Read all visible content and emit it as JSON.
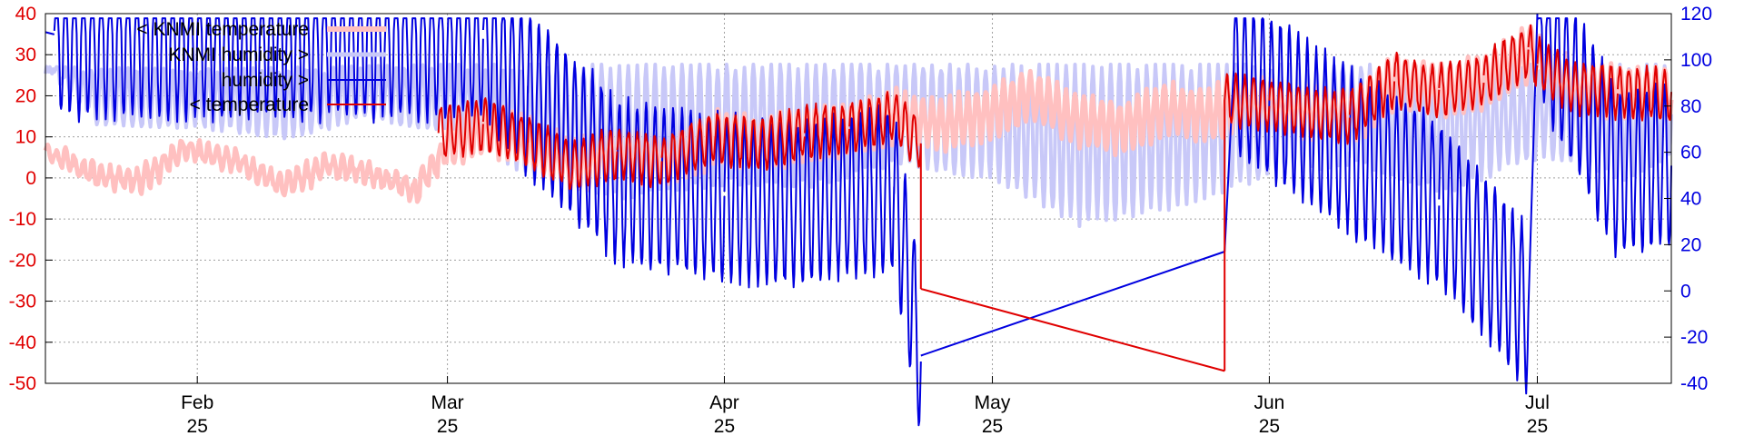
{
  "chart_data": {
    "type": "line",
    "title": "",
    "x_tick_labels": [
      {
        "date": "2025-02-01",
        "month": "Feb",
        "year": "25"
      },
      {
        "date": "2025-03-01",
        "month": "Mar",
        "year": "25"
      },
      {
        "date": "2025-04-01",
        "month": "Apr",
        "year": "25"
      },
      {
        "date": "2025-05-01",
        "month": "May",
        "year": "25"
      },
      {
        "date": "2025-06-01",
        "month": "Jun",
        "year": "25"
      },
      {
        "date": "2025-07-01",
        "month": "Jul",
        "year": "25"
      }
    ],
    "xlim": [
      "2025-01-15",
      "2025-07-16"
    ],
    "y_left": {
      "ticks": [
        40,
        30,
        20,
        10,
        0,
        -10,
        -20,
        -30,
        -40,
        -50
      ],
      "ylim": [
        -50,
        40
      ],
      "color": "#e00000"
    },
    "y_right": {
      "ticks": [
        120,
        100,
        80,
        60,
        40,
        20,
        0,
        -20,
        -40
      ],
      "ylim": [
        -40,
        120
      ],
      "color": "#0000e0"
    },
    "grid": true,
    "legend_position": "top-left",
    "series": [
      {
        "name": "< KNMI temperature",
        "axis": "left",
        "color": "#ffc0c0",
        "points": [
          [
            "2025-01-15",
            6
          ],
          [
            "2025-01-20",
            1
          ],
          [
            "2025-01-25",
            -1
          ],
          [
            "2025-01-30",
            7
          ],
          [
            "2025-02-05",
            4
          ],
          [
            "2025-02-10",
            -2
          ],
          [
            "2025-02-15",
            3
          ],
          [
            "2025-02-20",
            1
          ],
          [
            "2025-02-25",
            -3
          ],
          [
            "2025-03-01",
            9
          ],
          [
            "2025-03-05",
            12
          ],
          [
            "2025-03-10",
            8
          ],
          [
            "2025-03-15",
            3
          ],
          [
            "2025-03-20",
            6
          ],
          [
            "2025-03-25",
            4
          ],
          [
            "2025-03-31",
            10
          ],
          [
            "2025-04-05",
            8
          ],
          [
            "2025-04-10",
            11
          ],
          [
            "2025-04-15",
            12
          ],
          [
            "2025-04-20",
            15
          ],
          [
            "2025-04-25",
            13
          ],
          [
            "2025-05-01",
            16
          ],
          [
            "2025-05-05",
            20
          ],
          [
            "2025-05-10",
            14
          ],
          [
            "2025-05-15",
            12
          ],
          [
            "2025-05-20",
            17
          ],
          [
            "2025-05-25",
            15
          ],
          [
            "2025-05-28",
            19
          ],
          [
            "2025-06-01",
            18
          ],
          [
            "2025-06-05",
            16
          ],
          [
            "2025-06-10",
            15
          ],
          [
            "2025-06-15",
            24
          ],
          [
            "2025-06-20",
            21
          ],
          [
            "2025-06-25",
            24
          ],
          [
            "2025-06-30",
            31
          ],
          [
            "2025-07-01",
            28
          ],
          [
            "2025-07-05",
            22
          ],
          [
            "2025-07-10",
            21
          ],
          [
            "2025-07-16",
            20
          ]
        ]
      },
      {
        "name": "KNMI humidity >",
        "axis": "right",
        "color": "#c8c8f8",
        "points": [
          [
            "2025-01-15",
            94
          ],
          [
            "2025-01-20",
            72
          ],
          [
            "2025-02-01",
            70
          ],
          [
            "2025-02-10",
            66
          ],
          [
            "2025-02-20",
            74
          ],
          [
            "2025-03-01",
            68
          ],
          [
            "2025-03-10",
            48
          ],
          [
            "2025-03-20",
            40
          ],
          [
            "2025-04-01",
            46
          ],
          [
            "2025-04-10",
            45
          ],
          [
            "2025-04-20",
            55
          ],
          [
            "2025-05-01",
            47
          ],
          [
            "2025-05-10",
            28
          ],
          [
            "2025-05-20",
            35
          ],
          [
            "2025-06-01",
            50
          ],
          [
            "2025-06-10",
            55
          ],
          [
            "2025-06-20",
            42
          ],
          [
            "2025-07-01",
            58
          ],
          [
            "2025-07-10",
            48
          ],
          [
            "2025-07-16",
            60
          ]
        ],
        "max_points": [
          [
            "2025-01-15",
            97
          ],
          [
            "2025-02-01",
            96
          ],
          [
            "2025-03-01",
            98
          ],
          [
            "2025-04-01",
            98
          ],
          [
            "2025-05-01",
            98
          ],
          [
            "2025-06-01",
            98
          ],
          [
            "2025-07-01",
            98
          ],
          [
            "2025-07-16",
            98
          ]
        ]
      },
      {
        "name": "humidity >",
        "axis": "right",
        "color": "#0000e0",
        "points": [
          [
            "2025-01-15",
            112
          ],
          [
            "2025-01-16",
            111
          ],
          [
            "2025-03-05",
            110
          ],
          [
            "2025-03-10",
            86
          ],
          [
            "2025-03-20",
            48
          ],
          [
            "2025-04-01",
            40
          ],
          [
            "2025-04-10",
            38
          ],
          [
            "2025-04-20",
            44
          ],
          [
            "2025-04-23",
            -28
          ],
          [
            "2025-05-27",
            17
          ],
          [
            "2025-05-28",
            95
          ],
          [
            "2025-06-10",
            60
          ],
          [
            "2025-06-20",
            38
          ],
          [
            "2025-06-30",
            -8
          ],
          [
            "2025-07-01",
            120
          ],
          [
            "2025-07-10",
            50
          ],
          [
            "2025-07-16",
            56
          ]
        ]
      },
      {
        "name": "< temperature",
        "axis": "left",
        "color": "#e00000",
        "points": [
          [
            "2025-02-28",
            11
          ],
          [
            "2025-03-05",
            13
          ],
          [
            "2025-03-10",
            9
          ],
          [
            "2025-03-15",
            3
          ],
          [
            "2025-03-20",
            6
          ],
          [
            "2025-03-25",
            4
          ],
          [
            "2025-03-31",
            10
          ],
          [
            "2025-04-05",
            8
          ],
          [
            "2025-04-10",
            11
          ],
          [
            "2025-04-15",
            12
          ],
          [
            "2025-04-20",
            15
          ],
          [
            "2025-04-23",
            8
          ],
          [
            "2025-04-23",
            -27
          ],
          [
            "2025-05-27",
            -47
          ],
          [
            "2025-05-27",
            19
          ],
          [
            "2025-06-01",
            18
          ],
          [
            "2025-06-05",
            16
          ],
          [
            "2025-06-10",
            15
          ],
          [
            "2025-06-15",
            24
          ],
          [
            "2025-06-20",
            21
          ],
          [
            "2025-06-25",
            24
          ],
          [
            "2025-06-30",
            31
          ],
          [
            "2025-07-01",
            28
          ],
          [
            "2025-07-05",
            22
          ],
          [
            "2025-07-10",
            21
          ],
          [
            "2025-07-16",
            20
          ]
        ]
      }
    ]
  }
}
